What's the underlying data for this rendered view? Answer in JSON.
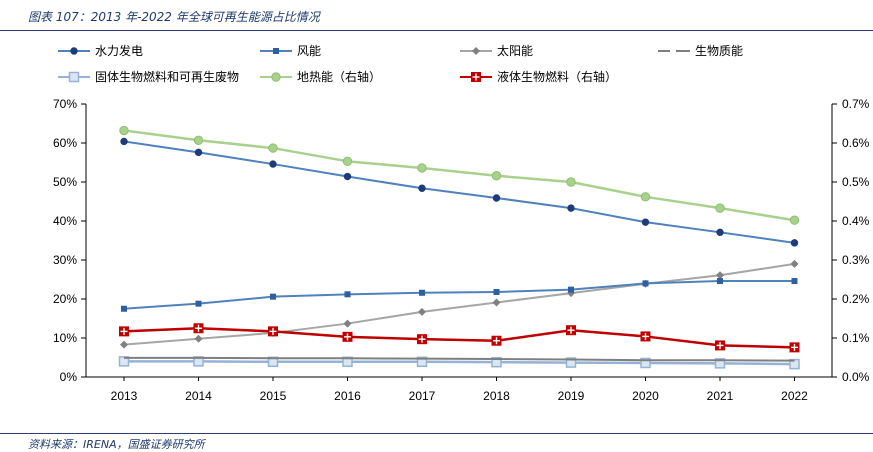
{
  "header": {
    "figure_title": "图表 107：2013 年-2022 年全球可再生能源占比情况"
  },
  "footer": {
    "source": "资料来源：IRENA，国盛证券研究所"
  },
  "chart_data": {
    "type": "line",
    "categories": [
      "2013",
      "2014",
      "2015",
      "2016",
      "2017",
      "2018",
      "2019",
      "2020",
      "2021",
      "2022"
    ],
    "y_left": {
      "ylim": [
        0,
        70
      ],
      "ticks": [
        0,
        10,
        20,
        30,
        40,
        50,
        60,
        70
      ],
      "tick_labels": [
        "0%",
        "10%",
        "20%",
        "30%",
        "40%",
        "50%",
        "60%",
        "70%"
      ]
    },
    "y_right": {
      "ylim": [
        0,
        0.7
      ],
      "ticks": [
        0,
        0.1,
        0.2,
        0.3,
        0.4,
        0.5,
        0.6,
        0.7
      ],
      "tick_labels": [
        "0.0%",
        "0.1%",
        "0.2%",
        "0.3%",
        "0.4%",
        "0.5%",
        "0.6%",
        "0.7%"
      ]
    },
    "series": [
      {
        "name": "水力发电",
        "axis": "left",
        "color": "#4f81bd",
        "marker": "circle-dark",
        "values": [
          60.4,
          57.6,
          54.6,
          51.4,
          48.4,
          45.9,
          43.3,
          39.7,
          37.1,
          34.4
        ]
      },
      {
        "name": "风能",
        "axis": "left",
        "color": "#4f81bd",
        "marker": "square",
        "values": [
          17.5,
          18.8,
          20.6,
          21.2,
          21.6,
          21.8,
          22.4,
          24.0,
          24.6,
          24.6
        ]
      },
      {
        "name": "太阳能",
        "axis": "left",
        "color": "#a6a6a6",
        "marker": "diamond",
        "values": [
          8.3,
          9.8,
          11.3,
          13.7,
          16.7,
          19.1,
          21.5,
          23.9,
          26.1,
          29.0
        ]
      },
      {
        "name": "生物质能",
        "axis": "left",
        "color": "#7f7f7f",
        "marker": "none",
        "values": [
          4.9,
          4.9,
          4.8,
          4.8,
          4.7,
          4.6,
          4.5,
          4.3,
          4.3,
          4.2
        ]
      },
      {
        "name": "固体生物燃料和可再生废物",
        "axis": "left",
        "color": "#95b3d7",
        "marker": "square-open",
        "values": [
          4.0,
          4.0,
          3.9,
          3.9,
          3.9,
          3.8,
          3.7,
          3.6,
          3.5,
          3.3
        ]
      },
      {
        "name": "地热能（右轴）",
        "axis": "right",
        "color": "#a9d18e",
        "marker": "circle",
        "values": [
          0.632,
          0.607,
          0.587,
          0.553,
          0.536,
          0.516,
          0.5,
          0.462,
          0.433,
          0.402
        ]
      },
      {
        "name": "液体生物燃料（右轴）",
        "axis": "right",
        "color": "#c00000",
        "marker": "plus-square",
        "values": [
          0.117,
          0.125,
          0.117,
          0.103,
          0.097,
          0.093,
          0.12,
          0.104,
          0.081,
          0.076
        ]
      }
    ],
    "legend_position": "top",
    "grid": false
  }
}
